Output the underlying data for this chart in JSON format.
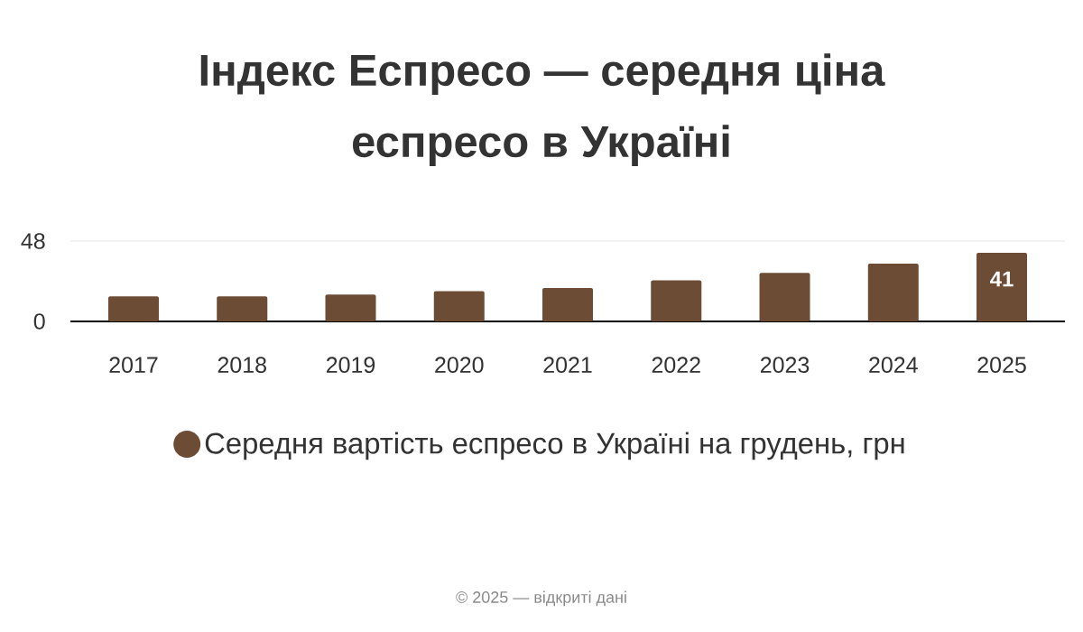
{
  "chart_data": {
    "type": "bar",
    "title": "Індекс Еспресо — середня ціна еспресо в Україні",
    "categories": [
      "2017",
      "2018",
      "2019",
      "2020",
      "2021",
      "2022",
      "2023",
      "2024",
      "2025"
    ],
    "series": [
      {
        "name": "Середня вартість еспресо в Україні на грудень, грн",
        "color": "#6d4c35",
        "values": [
          15,
          15,
          16,
          18,
          20,
          24.5,
          29,
          34.5,
          41
        ],
        "value_labels": [
          null,
          null,
          null,
          null,
          null,
          null,
          null,
          null,
          "41"
        ]
      }
    ],
    "ylim": [
      0,
      48
    ],
    "yticks": [
      0,
      48
    ],
    "grid": "y",
    "legend": "bottom",
    "annotations": [
      "© 2025 — відкриті дані"
    ]
  }
}
